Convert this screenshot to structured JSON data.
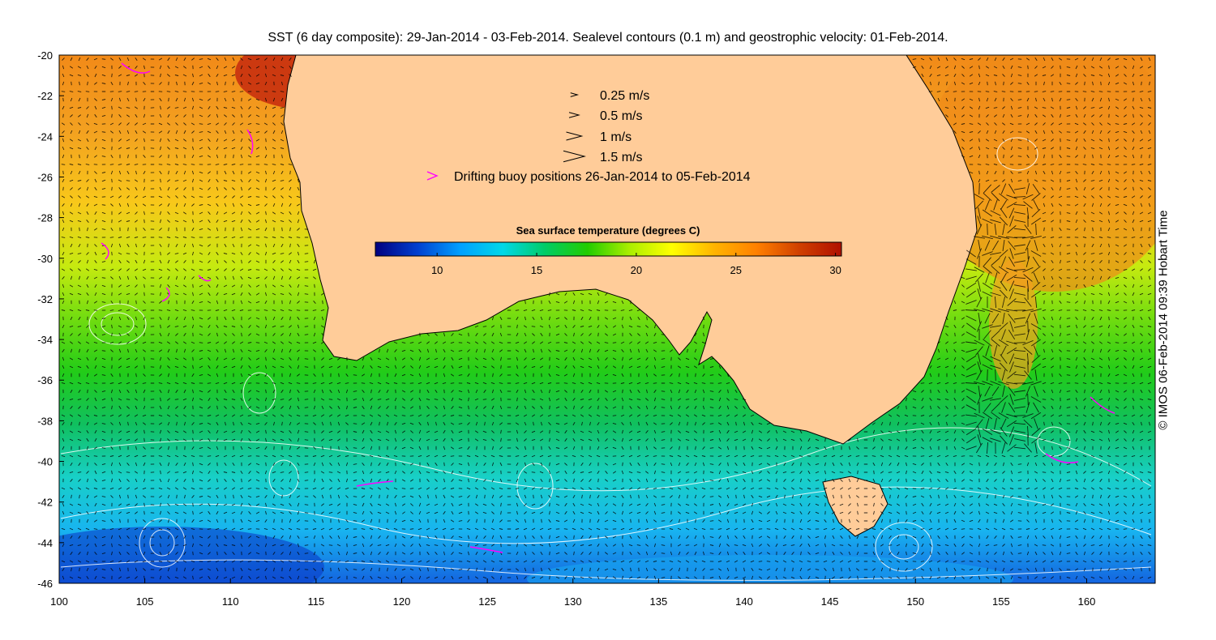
{
  "title": "SST (6 day composite): 29-Jan-2014 - 03-Feb-2014. Sealevel contours (0.1 m) and geostrophic velocity: 01-Feb-2014.",
  "credit": "© IMOS 06-Feb-2014 09:39 Hobart Time",
  "map": {
    "lon_range": [
      100,
      164
    ],
    "lat_range": [
      -46,
      -20
    ],
    "x_ticks": [
      100,
      105,
      110,
      115,
      120,
      125,
      130,
      135,
      140,
      145,
      150,
      155,
      160
    ],
    "y_ticks": [
      -20,
      -22,
      -24,
      -26,
      -28,
      -30,
      -32,
      -34,
      -36,
      -38,
      -40,
      -42,
      -44,
      -46
    ],
    "land_color": "#ffcc99",
    "coast_color": "#000000",
    "contour_color": "#ffffff",
    "vector_color": "#000000",
    "buoy_color": "#ff00ff"
  },
  "legend": {
    "items": [
      {
        "label": "0.25 m/s",
        "speed": 0.25,
        "symbol": "arrow"
      },
      {
        "label": "0.5 m/s",
        "speed": 0.5,
        "symbol": "arrow"
      },
      {
        "label": "1 m/s",
        "speed": 1,
        "symbol": "arrow"
      },
      {
        "label": "1.5 m/s",
        "speed": 1.5,
        "symbol": "arrow"
      },
      {
        "label": "Drifting buoy positions 26-Jan-2014 to 05-Feb-2014",
        "symbol": "buoy"
      }
    ]
  },
  "colorbar": {
    "title": "Sea surface temperature (degrees C)",
    "range": [
      6.9,
      30.3
    ],
    "ticks": [
      10,
      15,
      20,
      25,
      30
    ],
    "stops": [
      "#000080",
      "#0040d0",
      "#00a0ff",
      "#00d8e8",
      "#00cc66",
      "#22cc00",
      "#aaee00",
      "#ffff00",
      "#ffb400",
      "#ff8000",
      "#d04000",
      "#b01000"
    ]
  }
}
